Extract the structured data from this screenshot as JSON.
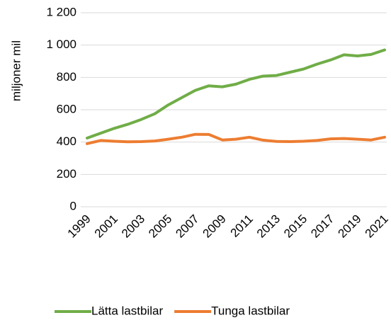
{
  "chart_data": {
    "type": "line",
    "y_label": "miljoner mil",
    "categories": [
      "1999",
      null,
      "2001",
      null,
      "2003",
      null,
      "2005",
      null,
      "2007",
      null,
      "2009",
      null,
      "2011",
      null,
      "2013",
      null,
      "2015",
      null,
      "2017",
      null,
      "2019",
      null,
      "2021"
    ],
    "series": [
      {
        "name": "Lätta lastbilar",
        "color": "#70ad47",
        "values": [
          425,
          455,
          485,
          510,
          540,
          575,
          630,
          675,
          720,
          748,
          742,
          758,
          788,
          808,
          812,
          832,
          852,
          882,
          908,
          940,
          933,
          942,
          970
        ]
      },
      {
        "name": "Tunga lastbilar",
        "color": "#ed7d31",
        "values": [
          390,
          410,
          405,
          402,
          403,
          407,
          418,
          430,
          448,
          447,
          413,
          418,
          430,
          412,
          404,
          403,
          405,
          410,
          420,
          422,
          418,
          413,
          430
        ]
      }
    ],
    "ylim": [
      0,
      1200
    ],
    "yticks": [
      0,
      200,
      400,
      600,
      800,
      {
        "value": 1000,
        "label": "1 000"
      },
      {
        "value": 1200,
        "label": "1 200"
      }
    ],
    "grid": true,
    "legend": "bottom"
  }
}
